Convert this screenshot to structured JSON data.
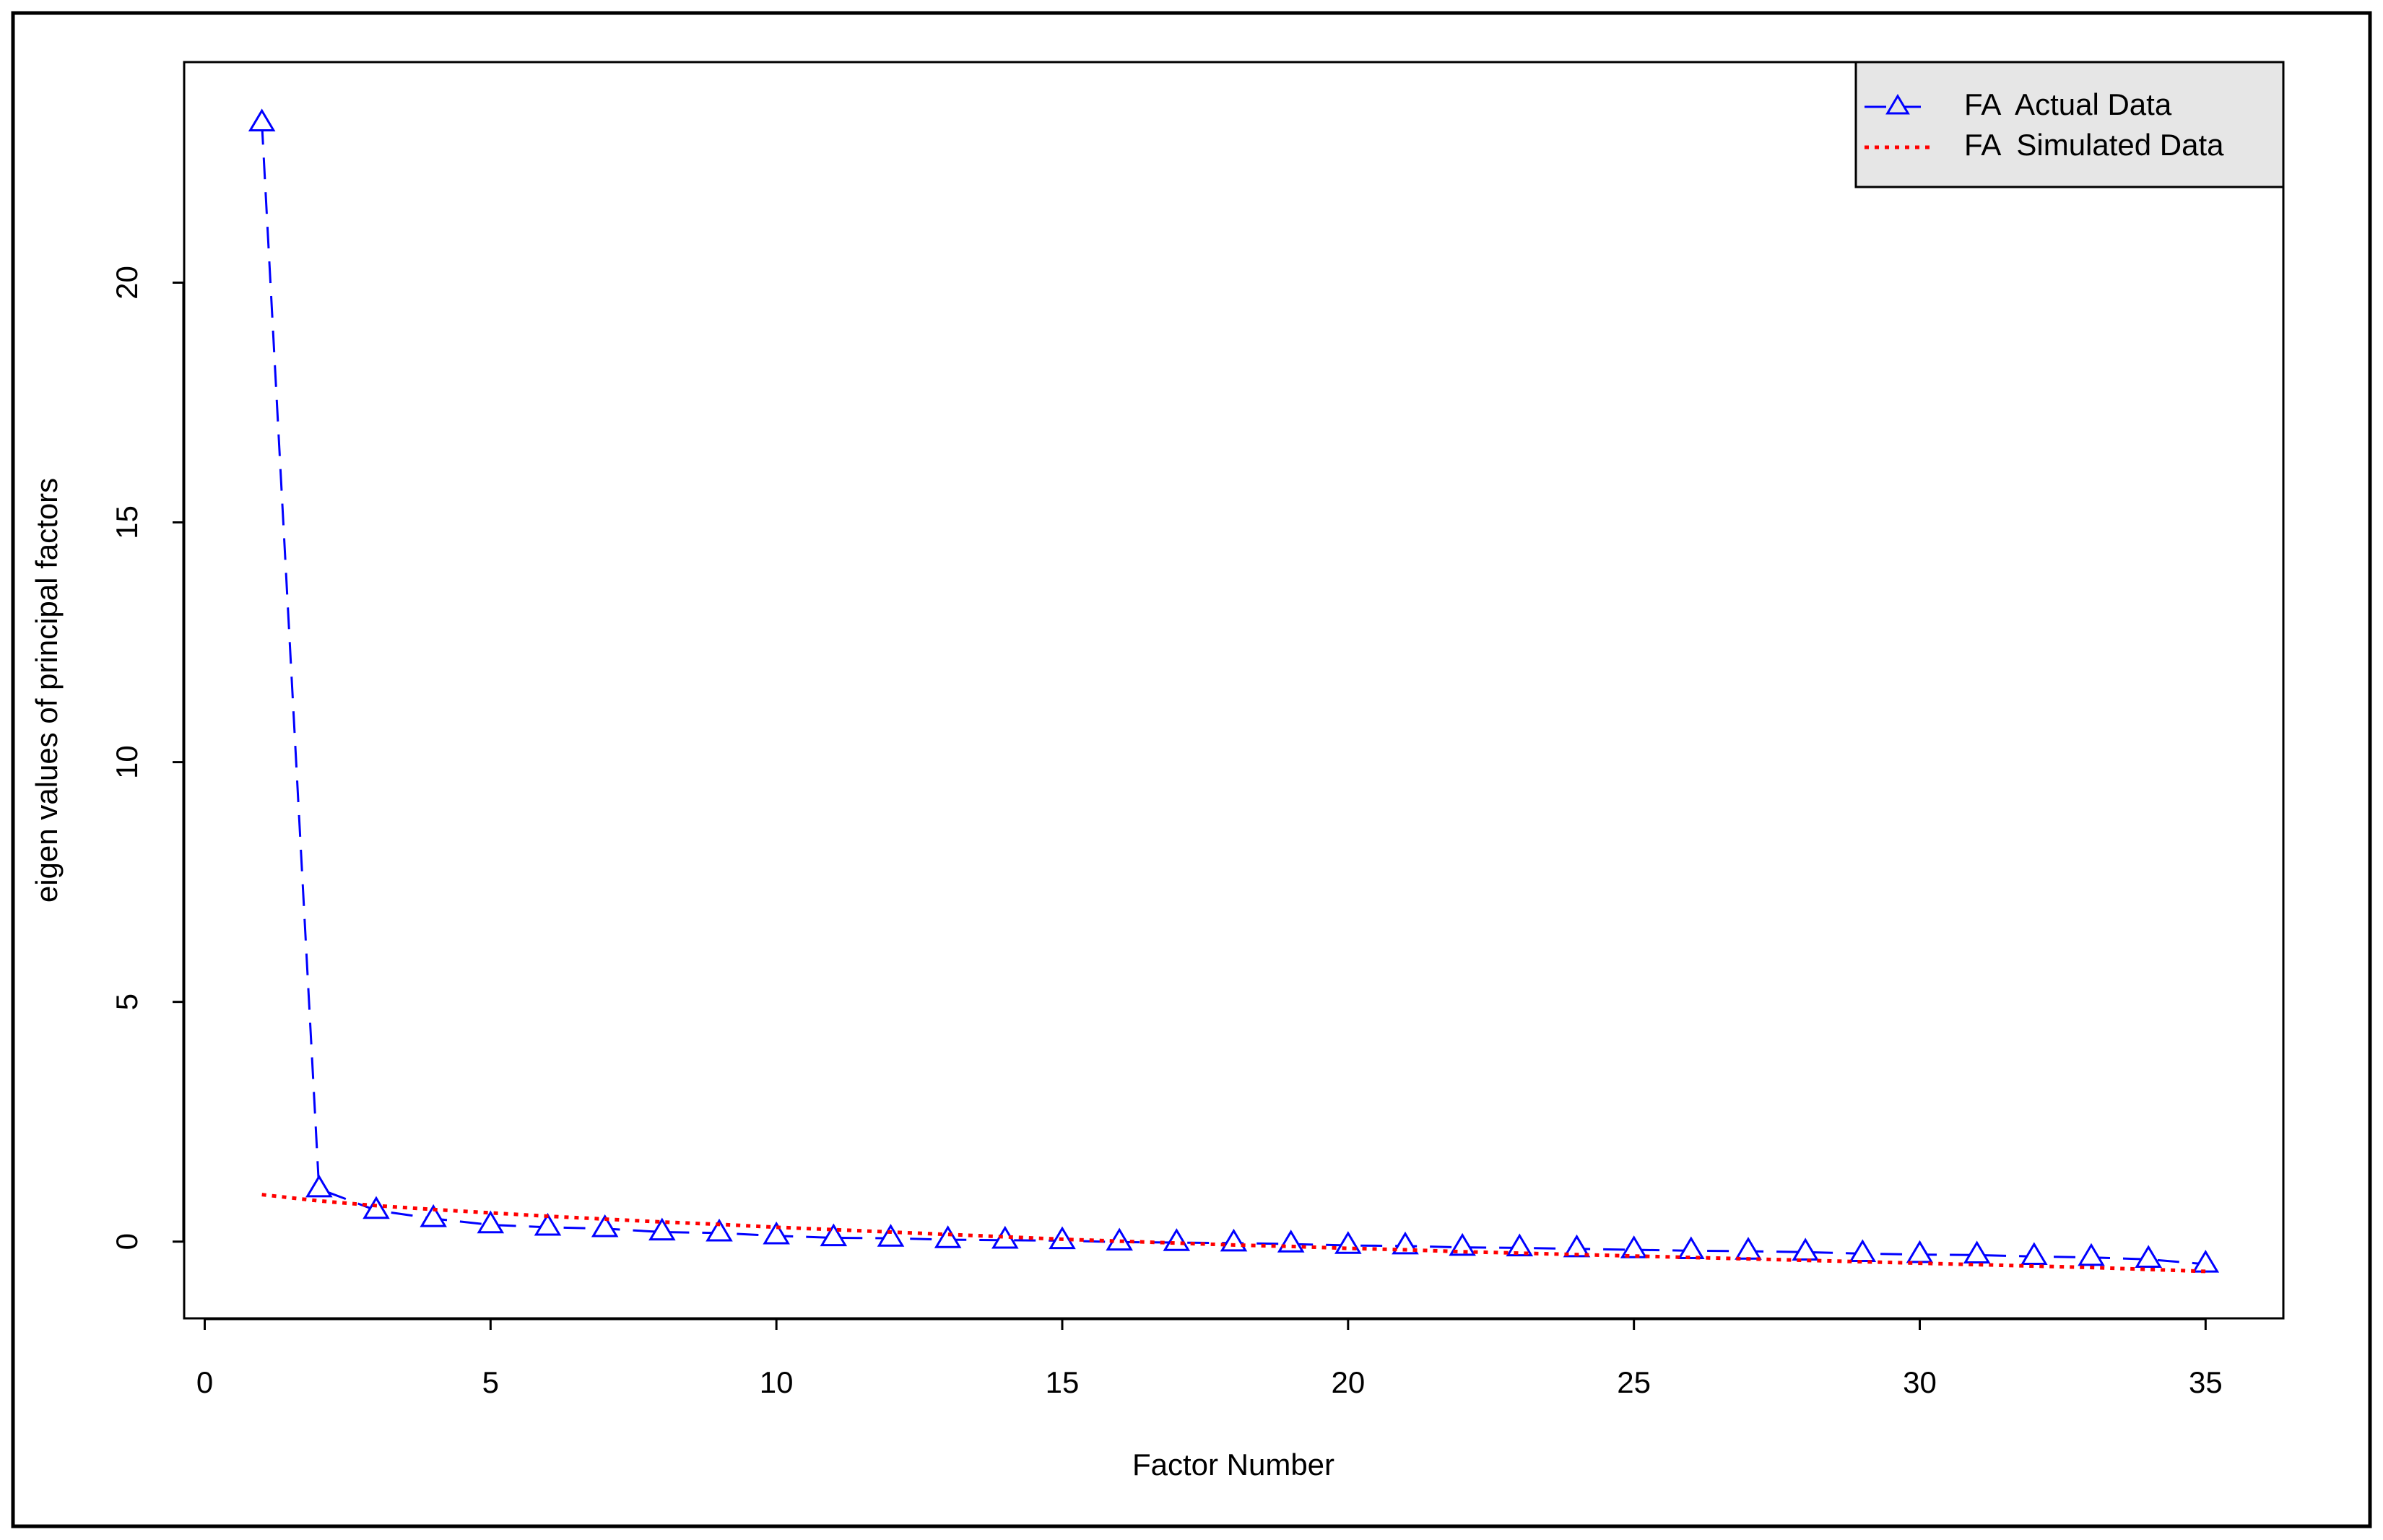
{
  "chart_data": {
    "type": "line",
    "x_label": "Factor Number",
    "y_label": "eigen values of principal factors",
    "x": [
      1,
      2,
      3,
      4,
      5,
      6,
      7,
      8,
      9,
      10,
      11,
      12,
      13,
      14,
      15,
      16,
      17,
      18,
      19,
      20,
      21,
      22,
      23,
      24,
      25,
      26,
      27,
      28,
      29,
      30,
      31,
      32,
      33,
      34,
      35
    ],
    "series": [
      {
        "name": "FA  Actual Data",
        "color": "#0000ff",
        "line_style": "dashed",
        "marker": "triangle",
        "values": [
          23.33,
          1.1,
          0.65,
          0.48,
          0.35,
          0.3,
          0.27,
          0.2,
          0.18,
          0.12,
          0.08,
          0.07,
          0.04,
          0.03,
          0.02,
          -0.01,
          -0.02,
          -0.03,
          -0.05,
          -0.08,
          -0.09,
          -0.12,
          -0.13,
          -0.15,
          -0.17,
          -0.19,
          -0.2,
          -0.22,
          -0.25,
          -0.27,
          -0.28,
          -0.31,
          -0.33,
          -0.37,
          -0.47
        ]
      },
      {
        "name": "FA  Simulated Data",
        "color": "#ff0000",
        "line_style": "dotted",
        "values": [
          0.98,
          0.85,
          0.75,
          0.67,
          0.6,
          0.53,
          0.47,
          0.41,
          0.36,
          0.3,
          0.25,
          0.2,
          0.15,
          0.1,
          0.05,
          0.01,
          -0.03,
          -0.07,
          -0.1,
          -0.14,
          -0.17,
          -0.21,
          -0.24,
          -0.27,
          -0.3,
          -0.33,
          -0.36,
          -0.39,
          -0.42,
          -0.45,
          -0.48,
          -0.51,
          -0.54,
          -0.58,
          -0.62
        ]
      }
    ],
    "xlim": [
      -0.36,
      36.36
    ],
    "xticks": [
      0,
      5,
      10,
      15,
      20,
      25,
      30,
      35
    ],
    "ylim": [
      -1.6,
      24.6
    ],
    "yticks": [
      0,
      5,
      10,
      15,
      20
    ],
    "legend": "topright",
    "legend_text_color": "#008000",
    "legend_background": "#e6e6e6"
  }
}
